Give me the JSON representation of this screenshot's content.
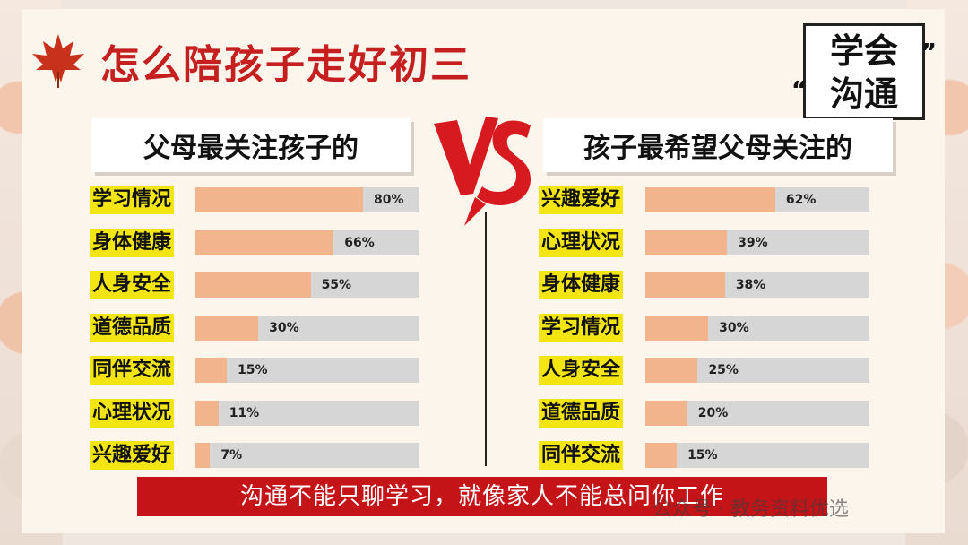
{
  "title": "怎么陪孩子走好初三",
  "badge": {
    "line1": "学会",
    "line2": "沟通",
    "quote_open": "“",
    "quote_close": "”"
  },
  "left_header": "父母最关注孩子的",
  "right_header": "孩子最希望父母关注的",
  "banner": "沟通不能只聊学习，就像家人不能总问你工作",
  "watermark": "公众号 · 教务资料优选",
  "colors": {
    "title": "#c51f1f",
    "fill": "#f2b48c",
    "track": "#d6d6d6",
    "label_bg": "#f3e512",
    "banner": "#c41418"
  },
  "chart_data": [
    {
      "type": "bar",
      "orientation": "horizontal",
      "categories": [
        "学习情况",
        "身体健康",
        "人身安全",
        "道德品质",
        "同伴交流",
        "心理状况",
        "兴趣爱好"
      ],
      "values": [
        80,
        66,
        55,
        30,
        15,
        11,
        7
      ],
      "labels": [
        "80%",
        "66%",
        "55%",
        "30%",
        "15%",
        "11%",
        "7%"
      ],
      "xlim": [
        0,
        100
      ]
    },
    {
      "type": "bar",
      "orientation": "horizontal",
      "categories": [
        "兴趣爱好",
        "心理状况",
        "身体健康",
        "学习情况",
        "人身安全",
        "道德品质",
        "同伴交流"
      ],
      "values": [
        62,
        39,
        38,
        30,
        25,
        20,
        15
      ],
      "labels": [
        "62%",
        "39%",
        "38%",
        "30%",
        "25%",
        "20%",
        "15%"
      ],
      "xlim": [
        0,
        100
      ]
    }
  ]
}
